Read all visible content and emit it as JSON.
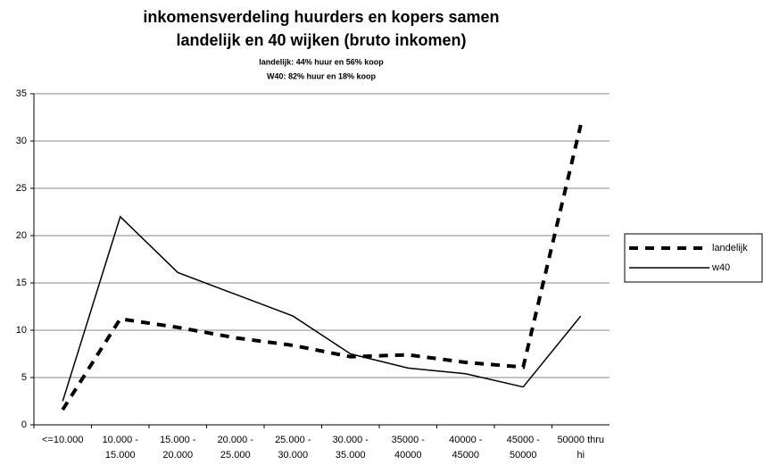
{
  "chart_data": {
    "type": "line",
    "title": [
      "inkomensverdeling huurders en kopers samen",
      "landelijk en 40 wijken (bruto inkomen)"
    ],
    "subtitle": [
      "landelijk: 44% huur en 56% koop",
      "W40: 82% huur en 18% koop"
    ],
    "categories": [
      "<=10.000",
      "10.000 - 15.000",
      "15.000 - 20.000",
      "20.000 - 25.000",
      "25.000 - 30.000",
      "30.000 - 35.000",
      "35000 - 40000",
      "40000 - 45000",
      "45000 - 50000",
      "50000 thru hi"
    ],
    "series": [
      {
        "name": "landelijk",
        "color": "#000000",
        "dashed": true,
        "values": [
          1.6,
          11.2,
          10.3,
          9.2,
          8.4,
          7.2,
          7.4,
          6.6,
          6.1,
          31.7
        ]
      },
      {
        "name": "w40",
        "color": "#000000",
        "dashed": false,
        "values": [
          2.5,
          22,
          16.1,
          13.8,
          11.5,
          7.5,
          6.0,
          5.4,
          4.0,
          11.5
        ]
      }
    ],
    "ylim": [
      0,
      35
    ],
    "yticks": [
      0,
      5,
      10,
      15,
      20,
      25,
      30,
      35
    ],
    "grid": true,
    "legend": "right"
  }
}
